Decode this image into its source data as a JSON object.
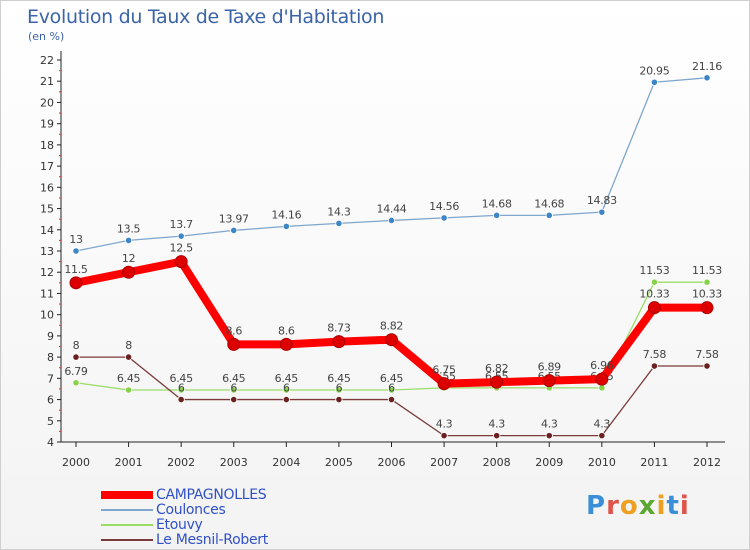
{
  "title": "Evolution du Taux de Taxe d'Habitation",
  "unit": "(en %)",
  "watermark": "Proxiti",
  "chart_data": {
    "type": "line",
    "title": "Evolution du Taux de Taxe d'Habitation",
    "subtitle": "(en %)",
    "xlabel": "",
    "ylabel": "",
    "x": [
      2000,
      2001,
      2002,
      2003,
      2004,
      2005,
      2006,
      2007,
      2008,
      2009,
      2010,
      2011,
      2012
    ],
    "ylim": [
      4,
      22
    ],
    "yticks": [
      4,
      5,
      6,
      7,
      8,
      9,
      10,
      11,
      12,
      13,
      14,
      15,
      16,
      17,
      18,
      19,
      20,
      21,
      22
    ],
    "grid": false,
    "legend_position": "bottom-left",
    "series": [
      {
        "name": "Coulonces",
        "color": "#7fa6cc",
        "marker_color": "#3d85c6",
        "values": [
          13,
          13.5,
          13.7,
          13.97,
          14.16,
          14.3,
          14.44,
          14.56,
          14.68,
          14.68,
          14.83,
          20.95,
          21.16
        ],
        "labels": [
          "13",
          "13.5",
          "13.7",
          "13.97",
          "14.16",
          "14.3",
          "14.44",
          "14.56",
          "14.68",
          "14.68",
          "14.83",
          "20.95",
          "21.16"
        ]
      },
      {
        "name": "Etouvy",
        "color": "#99dd66",
        "marker_color": "#88d24a",
        "values": [
          6.79,
          6.45,
          6.45,
          6.45,
          6.45,
          6.45,
          6.45,
          6.55,
          6.55,
          6.55,
          6.55,
          11.53,
          11.53
        ],
        "labels": [
          "6.79",
          "6.45",
          "6.45",
          "6.45",
          "6.45",
          "6.45",
          "6.45",
          "6.55",
          "6.55",
          "6.55",
          "6.55",
          "11.53",
          "11.53"
        ]
      },
      {
        "name": "Le Mesnil-Robert",
        "color": "#7a3a3a",
        "marker_color": "#6b2020",
        "values": [
          8,
          8,
          6,
          6,
          6,
          6,
          6,
          4.3,
          4.3,
          4.3,
          4.3,
          7.58,
          7.58
        ],
        "labels": [
          "8",
          "8",
          "6",
          "6",
          "6",
          "6",
          "6",
          "4.3",
          "4.3",
          "4.3",
          "4.3",
          "7.58",
          "7.58"
        ]
      },
      {
        "name": "CAMPAGNOLLES",
        "color": "#ff0000",
        "marker_color": "#dd0000",
        "bold": true,
        "values": [
          11.5,
          12,
          12.5,
          8.6,
          8.6,
          8.73,
          8.82,
          6.75,
          6.82,
          6.89,
          6.96,
          10.33,
          10.33
        ],
        "labels": [
          "11.5",
          "12",
          "12.5",
          "8.6",
          "8.6",
          "8.73",
          "8.82",
          "6.75",
          "6.82",
          "6.89",
          "6.96",
          "10.33",
          "10.33"
        ]
      }
    ],
    "legend": [
      "CAMPAGNOLLES",
      "Coulonces",
      "Etouvy",
      "Le Mesnil-Robert"
    ]
  }
}
